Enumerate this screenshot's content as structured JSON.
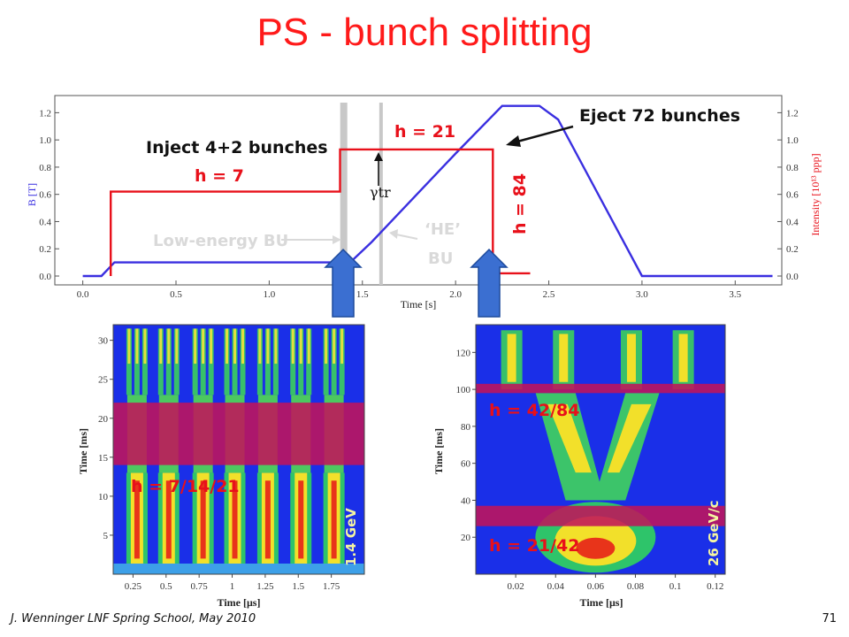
{
  "slide": {
    "title": "PS - bunch splitting",
    "footer": "J. Wenninger LNF Spring School, May 2010",
    "page_number": "71"
  },
  "colors": {
    "title": "#ff1a1a",
    "b_field": "#3a2fe0",
    "intensity": "#e8101a",
    "band": "#c0145a",
    "arrow_fill": "#3b6fd1"
  },
  "annotations": {
    "inject": "Inject 4+2 bunches",
    "h7": "h = 7",
    "h21": "h = 21",
    "eject": "Eject 72 bunches",
    "gamma_tr": "γtr",
    "h84": "h = 84",
    "low_energy_bu": "Low-energy BU",
    "he": "‘HE’",
    "bu": "BU",
    "h7_14_21": "h = 7/14/21",
    "energy_14": "1.4 GeV",
    "h42_84": "h = 42/84",
    "h21_42": "h = 21/42",
    "energy_26": "26 GeV/c"
  },
  "chart_data": [
    {
      "type": "line",
      "xlabel": "Time [s]",
      "ylabel_left": "B [T]",
      "ylabel_right": "Intensity [10¹³ ppp]",
      "xlim": [
        -0.15,
        3.75
      ],
      "ylim": [
        0,
        1.3
      ],
      "x_ticks": [
        "0.0",
        "0.5",
        "1.0",
        "1.5",
        "2.0",
        "2.5",
        "3.0",
        "3.5"
      ],
      "y_ticks": [
        "0.0",
        "0.2",
        "0.4",
        "0.6",
        "0.8",
        "1.0",
        "1.2"
      ],
      "y_ticks_right": [
        "0.0",
        "0.2",
        "0.4",
        "0.6",
        "0.8",
        "1.0",
        "1.2"
      ],
      "vertical_markers_s": [
        1.4,
        1.6
      ],
      "series": [
        {
          "axis": "left",
          "color": "#3a2fe0",
          "x": [
            0.0,
            0.1,
            0.17,
            1.38,
            1.45,
            1.55,
            2.0,
            2.25,
            2.45,
            2.55,
            3.0,
            3.7
          ],
          "y": [
            0.0,
            0.0,
            0.1,
            0.1,
            0.12,
            0.25,
            0.9,
            1.25,
            1.25,
            1.15,
            0.0,
            0.0
          ]
        },
        {
          "axis": "right",
          "color": "#e8101a",
          "x": [
            0.15,
            0.15,
            1.38,
            1.38,
            2.2,
            2.2,
            2.4
          ],
          "y": [
            0.0,
            0.62,
            0.62,
            0.93,
            0.93,
            0.02,
            0.02
          ]
        }
      ]
    },
    {
      "type": "heatmap",
      "xlabel": "Time [μs]",
      "ylabel": "Time [ms]",
      "xlim": [
        0.1,
        2.0
      ],
      "ylim": [
        0,
        32
      ],
      "x_ticks": [
        "0.25",
        "0.5",
        "0.75",
        "1",
        "1.25",
        "1.5",
        "1.75"
      ],
      "y_ticks": [
        "5",
        "10",
        "15",
        "20",
        "25",
        "30"
      ],
      "highlight_bands_ms": [
        [
          14,
          22
        ]
      ],
      "bunch_centers_us": [
        0.28,
        0.52,
        0.78,
        1.02,
        1.27,
        1.52,
        1.77
      ]
    },
    {
      "type": "heatmap",
      "xlabel": "Time [μs]",
      "ylabel": "Time [ms]",
      "xlim": [
        0.0,
        0.125
      ],
      "ylim": [
        0,
        135
      ],
      "x_ticks": [
        "0.02",
        "0.04",
        "0.06",
        "0.08",
        "0.1",
        "0.12"
      ],
      "y_ticks": [
        "20",
        "40",
        "60",
        "80",
        "100",
        "120"
      ],
      "highlight_bands_ms": [
        [
          26,
          37
        ],
        [
          98,
          103
        ]
      ]
    }
  ]
}
